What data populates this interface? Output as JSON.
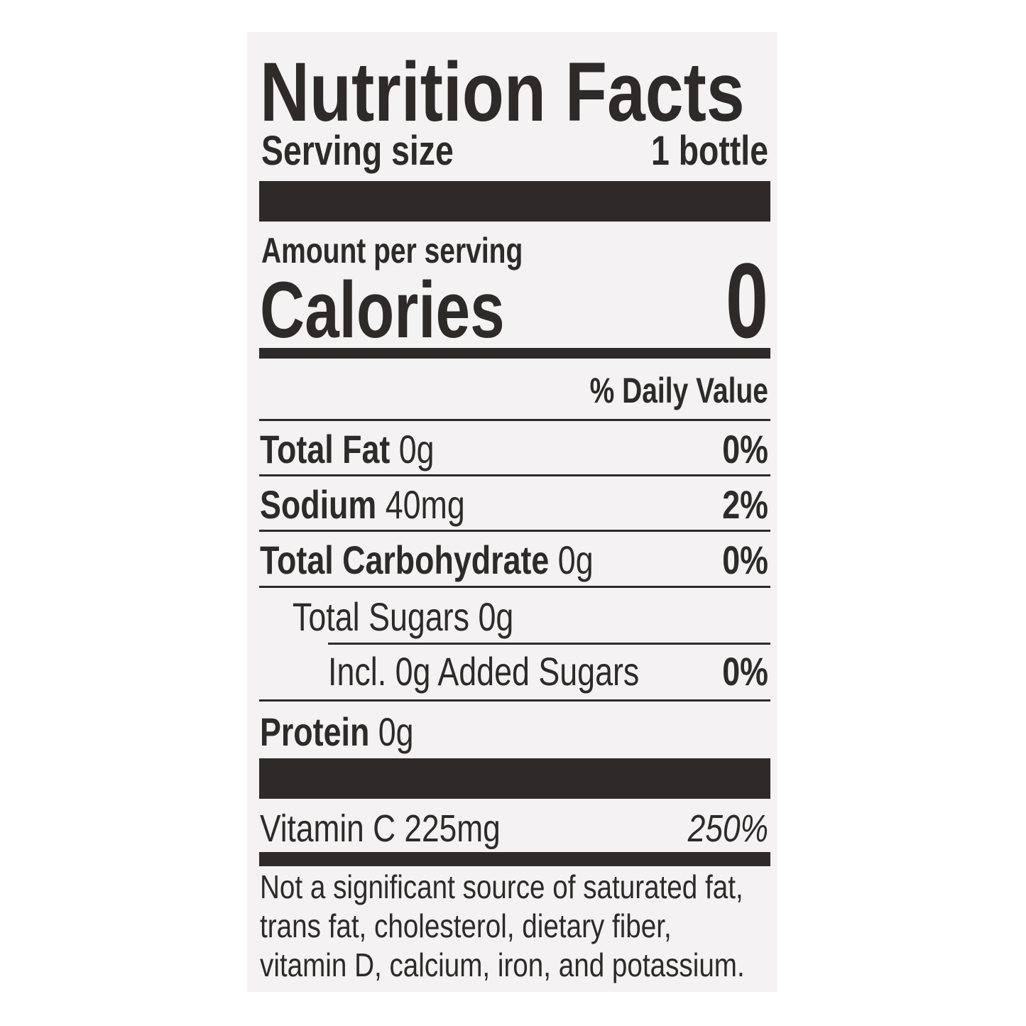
{
  "title": "Nutrition Facts",
  "serving": {
    "label": "Serving size",
    "value": "1 bottle"
  },
  "calories": {
    "header": "Amount per serving",
    "label": "Calories",
    "value": "0"
  },
  "daily_value_header": "% Daily Value",
  "nutrients": [
    {
      "name": "Total Fat",
      "amount": "0g",
      "dv": "0%"
    },
    {
      "name": "Sodium",
      "amount": "40mg",
      "dv": "2%"
    },
    {
      "name": "Total Carbohydrate",
      "amount": "0g",
      "dv": "0%"
    },
    {
      "name": "Total Sugars",
      "amount": "0g"
    },
    {
      "name": "Incl. 0g Added Sugars",
      "dv": "0%"
    },
    {
      "name": "Protein",
      "amount": "0g"
    }
  ],
  "vitamin": {
    "name": "Vitamin C",
    "amount": "225mg",
    "dv": "250%"
  },
  "footnote": [
    "Not a significant source of saturated fat,",
    "trans fat, cholesterol, dietary fiber,",
    "vitamin D, calcium, iron, and potassium."
  ]
}
